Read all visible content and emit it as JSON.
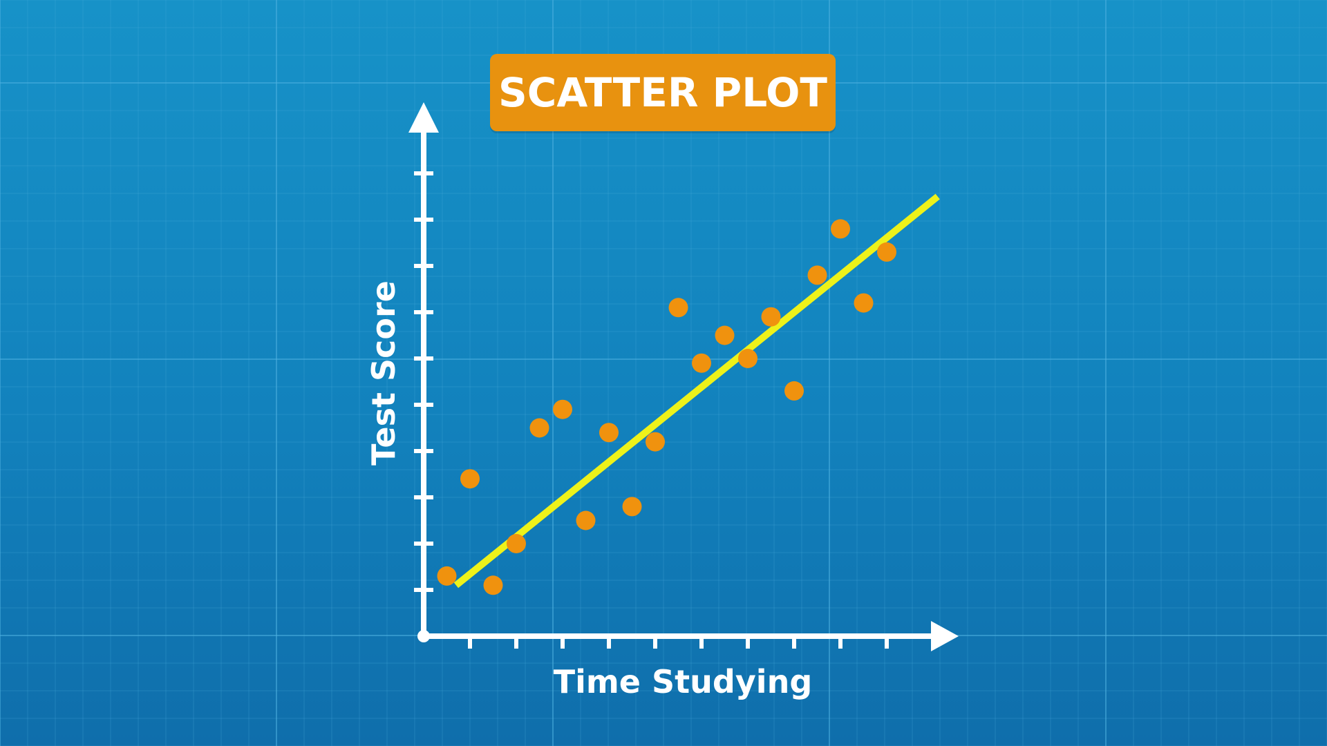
{
  "title": "SCATTER PLOT",
  "colors": {
    "background": "#1488c3",
    "grid": "#4fb0e0",
    "axis": "#ffffff",
    "title_badge": "#e8920f",
    "point": "#f0920e",
    "trend_line": "#eef21a"
  },
  "chart_data": {
    "type": "scatter",
    "title": "SCATTER PLOT",
    "xlabel": "Time Studying",
    "ylabel": "Test Score",
    "x_ticks": 10,
    "y_ticks": 10,
    "grid": true,
    "xlim": [
      0,
      11.5
    ],
    "ylim": [
      0,
      11.5
    ],
    "points": [
      {
        "x": 0.5,
        "y": 1.3
      },
      {
        "x": 1.0,
        "y": 3.4
      },
      {
        "x": 1.5,
        "y": 1.1
      },
      {
        "x": 2.0,
        "y": 2.0
      },
      {
        "x": 2.5,
        "y": 4.5
      },
      {
        "x": 3.0,
        "y": 4.9
      },
      {
        "x": 3.5,
        "y": 2.5
      },
      {
        "x": 4.0,
        "y": 4.4
      },
      {
        "x": 4.5,
        "y": 2.8
      },
      {
        "x": 5.0,
        "y": 4.2
      },
      {
        "x": 5.5,
        "y": 7.1
      },
      {
        "x": 6.0,
        "y": 5.9
      },
      {
        "x": 6.5,
        "y": 6.5
      },
      {
        "x": 7.0,
        "y": 6.0
      },
      {
        "x": 7.5,
        "y": 6.9
      },
      {
        "x": 8.0,
        "y": 5.3
      },
      {
        "x": 8.5,
        "y": 7.8
      },
      {
        "x": 9.0,
        "y": 8.8
      },
      {
        "x": 9.5,
        "y": 7.2
      },
      {
        "x": 10.0,
        "y": 8.3
      }
    ],
    "trend_line": {
      "x1": 0.7,
      "y1": 1.1,
      "x2": 11.1,
      "y2": 9.5
    }
  }
}
